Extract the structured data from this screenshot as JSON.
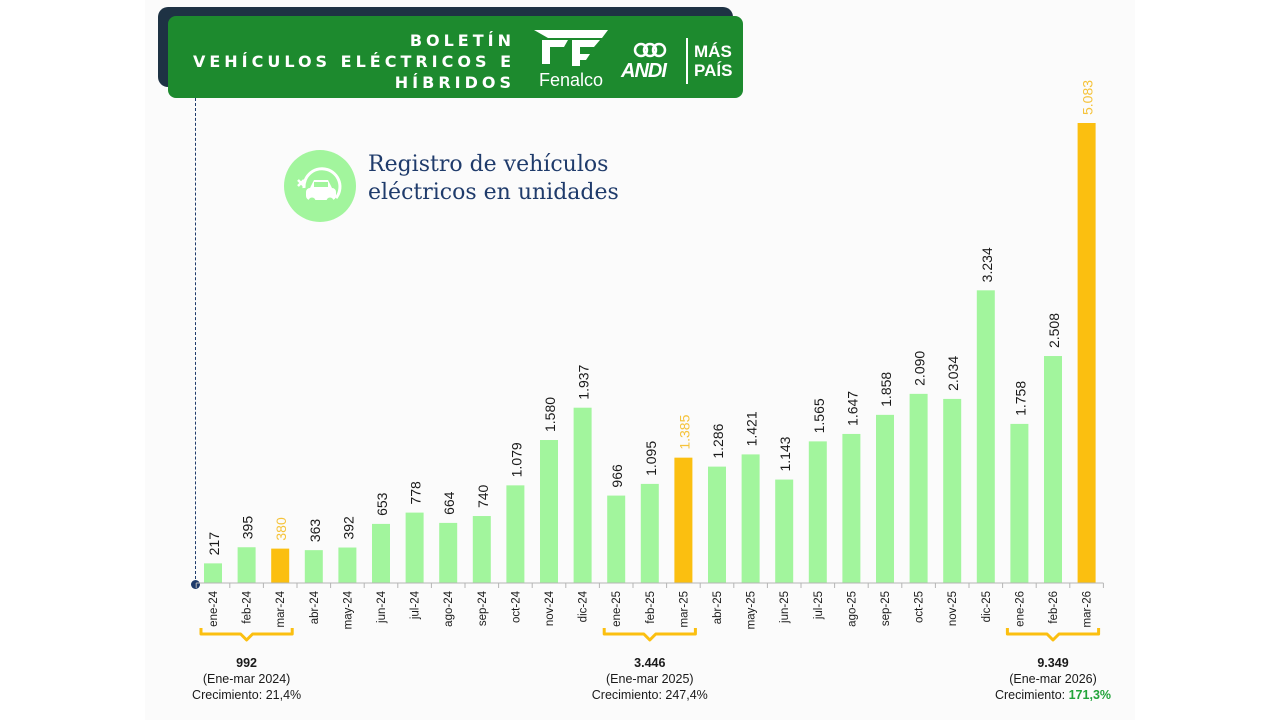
{
  "banner": {
    "title_lines": [
      "BOLETÍN",
      "VEHÍCULOS ELÉCTRICOS E",
      "HÍBRIDOS"
    ],
    "logo_fenalco": "Fenalco",
    "logo_andi": "ANDI",
    "logo_maspais_lines": [
      "MÁS",
      "PAÍS"
    ]
  },
  "subtitle_lines": [
    "Registro de vehículos",
    "eléctricos  en unidades"
  ],
  "summaries": [
    {
      "total": "992",
      "period": "(Ene-mar 2024)",
      "growth_label": "Crecimiento: ",
      "growth_value": "21,4%"
    },
    {
      "total": "3.446",
      "period": "(Ene-mar 2025)",
      "growth_label": "Crecimiento: ",
      "growth_value": "247,4%"
    },
    {
      "total": "9.349",
      "period": "(Ene-mar 2026)",
      "growth_label": "Crecimiento: ",
      "growth_value": "171,3%"
    }
  ],
  "colors": {
    "bar": "#a2f59d",
    "bar_highlight": "#fbbf10",
    "label_highlight": "#f5c33b",
    "banner": "#1d8a2e",
    "banner_shadow": "#1e3244",
    "text_dark": "#1f3b6b",
    "growth_highlight": "#22a33a"
  },
  "chart_data": {
    "type": "bar",
    "categories": [
      "ene-24",
      "feb-24",
      "mar-24",
      "abr-24",
      "may-24",
      "jun-24",
      "jul-24",
      "ago-24",
      "sep-24",
      "oct-24",
      "nov-24",
      "dic-24",
      "ene-25",
      "feb-25",
      "mar-25",
      "abr-25",
      "may-25",
      "jun-25",
      "jul-25",
      "ago-25",
      "sep-25",
      "oct-25",
      "nov-25",
      "dic-25",
      "ene-26",
      "feb-26",
      "mar-26"
    ],
    "values": [
      217,
      395,
      380,
      363,
      392,
      653,
      778,
      664,
      740,
      1079,
      1580,
      1937,
      966,
      1095,
      1385,
      1286,
      1421,
      1143,
      1565,
      1647,
      1858,
      2090,
      2034,
      3234,
      1758,
      2508,
      5083
    ],
    "value_labels": [
      "217",
      "395",
      "380",
      "363",
      "392",
      "653",
      "778",
      "664",
      "740",
      "1.079",
      "1.580",
      "1.937",
      "966",
      "1.095",
      "1.385",
      "1.286",
      "1.421",
      "1.143",
      "1.565",
      "1.647",
      "1.858",
      "2.090",
      "2.034",
      "3.234",
      "1.758",
      "2.508",
      "5.083"
    ],
    "highlighted": [
      "mar-24",
      "mar-25",
      "mar-26"
    ],
    "ylim": [
      0,
      5083
    ],
    "grid": false,
    "legend": "none"
  }
}
